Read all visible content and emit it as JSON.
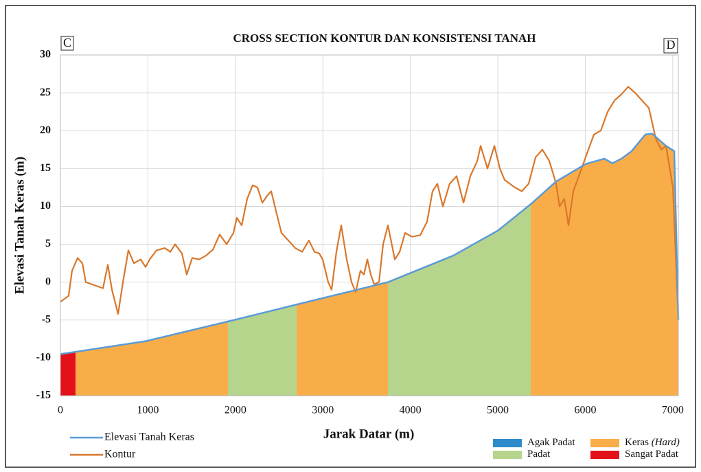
{
  "chart_data": {
    "type": "line",
    "title": "CROSS SECTION KONTUR DAN KONSISTENSI TANAH",
    "corner_left": "C",
    "corner_right": "D",
    "x_label": "Jarak Datar (m)",
    "y_label": "Elevasi Tanah Keras (m)",
    "xlim": [
      0,
      7064
    ],
    "ylim": [
      -15,
      30
    ],
    "xticks": [
      0,
      1000,
      2000,
      3000,
      4000,
      5000,
      6000,
      7000
    ],
    "yticks": [
      -15,
      -10,
      -5,
      0,
      5,
      10,
      15,
      20,
      25,
      30
    ],
    "grid": true,
    "series": [
      {
        "name": "Elevasi Tanah Keras",
        "color": "#5b9bd5",
        "x": [
          0,
          173,
          973,
          1986,
          2684,
          3744,
          4490,
          5000,
          5377,
          5667,
          6005,
          6217,
          6311,
          6413,
          6530,
          6688,
          6766,
          6923,
          7017,
          7064
        ],
        "values": [
          -9.5,
          -9.2,
          -7.8,
          -5,
          -3,
          0,
          3.5,
          6.8,
          10.3,
          13.3,
          15.6,
          16.3,
          15.7,
          16.3,
          17.3,
          19.5,
          19.6,
          18,
          17.3,
          -5
        ]
      },
      {
        "name": "Kontur",
        "color": "#d9772b",
        "x": [
          0,
          94,
          133,
          196,
          251,
          290,
          487,
          542,
          589,
          659,
          722,
          777,
          840,
          918,
          973,
          1020,
          1099,
          1193,
          1256,
          1311,
          1389,
          1444,
          1507,
          1586,
          1664,
          1743,
          1821,
          1900,
          1978,
          2017,
          2072,
          2135,
          2198,
          2253,
          2308,
          2370,
          2410,
          2473,
          2527,
          2606,
          2684,
          2763,
          2841,
          2904,
          2959,
          2998,
          3061,
          3100,
          3155,
          3210,
          3273,
          3328,
          3375,
          3430,
          3469,
          3509,
          3548,
          3587,
          3642,
          3689,
          3744,
          3823,
          3878,
          3940,
          4019,
          4113,
          4192,
          4254,
          4309,
          4372,
          4450,
          4529,
          4608,
          4686,
          4765,
          4804,
          4882,
          4961,
          5024,
          5078,
          5196,
          5275,
          5353,
          5432,
          5510,
          5589,
          5667,
          5706,
          5761,
          5808,
          5863,
          5942,
          6020,
          6099,
          6177,
          6256,
          6334,
          6413,
          6491,
          6570,
          6648,
          6727,
          6805,
          6868,
          6923,
          7002,
          7064
        ],
        "values": [
          -2.6,
          -1.8,
          1.5,
          3.2,
          2.5,
          0,
          -0.8,
          2.3,
          -1,
          -4.2,
          0.5,
          4.2,
          2.5,
          3,
          2,
          3,
          4.2,
          4.5,
          4,
          5,
          3.8,
          1,
          3.2,
          3,
          3.5,
          4.3,
          6.3,
          5,
          6.5,
          8.5,
          7.5,
          11,
          12.8,
          12.5,
          10.5,
          11.5,
          12,
          9,
          6.5,
          5.5,
          4.5,
          4,
          5.5,
          4,
          3.8,
          3,
          0,
          -1,
          4,
          7.5,
          3,
          0,
          -1.3,
          1.5,
          1,
          3,
          1,
          -0.3,
          0,
          5,
          7.5,
          3,
          4,
          6.5,
          6,
          6.2,
          8,
          12,
          13,
          10,
          13,
          14,
          10.5,
          14,
          16,
          18,
          15,
          18,
          15,
          13.5,
          12.5,
          12,
          13,
          16.5,
          17.5,
          16,
          13,
          10,
          11,
          7.5,
          12,
          14.5,
          17,
          19.5,
          20,
          22.5,
          24,
          24.8,
          25.8,
          25,
          24,
          23,
          19,
          17.5,
          18,
          12.5,
          -5
        ]
      }
    ],
    "soil_zones": [
      {
        "x": [
          0,
          173
        ],
        "color": "#e3121a"
      },
      {
        "x": [
          173,
          1915
        ],
        "color": "#f9ad48"
      },
      {
        "x": [
          1915,
          2700
        ],
        "color": "#b7d48c"
      },
      {
        "x": [
          2700,
          3744
        ],
        "color": "#f9ad48"
      },
      {
        "x": [
          3744,
          5377
        ],
        "color": "#b7d48c"
      },
      {
        "x": [
          5377,
          7064
        ],
        "color": "#f9ad48"
      }
    ],
    "zone_legend": [
      {
        "label": "Agak Padat",
        "color": "#2e8bc9"
      },
      {
        "label": "Keras",
        "label_italic": "(Hard)",
        "color": "#f9ad48"
      },
      {
        "label": "Padat",
        "color": "#b7d48c"
      },
      {
        "label": "Sangat Padat",
        "color": "#e3121a"
      }
    ]
  }
}
